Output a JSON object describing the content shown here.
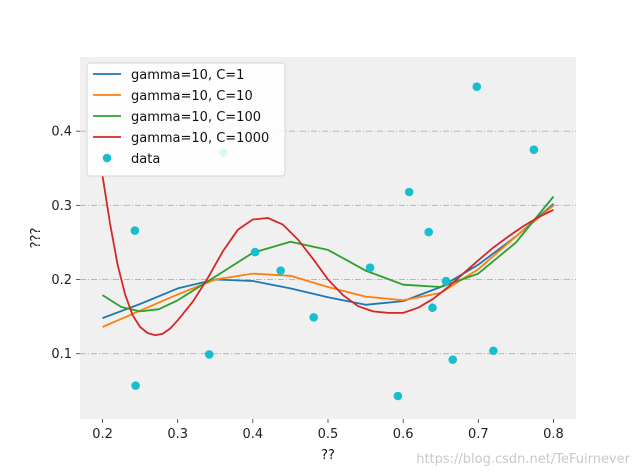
{
  "chart_data": {
    "type": "line",
    "title": "",
    "xlabel": "??",
    "ylabel": "???",
    "xlim": [
      0.17,
      0.83
    ],
    "ylim": [
      0.012,
      0.5
    ],
    "xticks": [
      0.2,
      0.3,
      0.4,
      0.5,
      0.6,
      0.7,
      0.8
    ],
    "yticks": [
      0.1,
      0.2,
      0.3,
      0.4
    ],
    "xtick_labels": [
      "0.2",
      "0.3",
      "0.4",
      "0.5",
      "0.6",
      "0.7",
      "0.8"
    ],
    "ytick_labels": [
      "0.1",
      "0.2",
      "0.3",
      "0.4"
    ],
    "grid": "horizontal dash-dot",
    "legend_position": "top-left",
    "series": [
      {
        "name": "gamma=10, C=1",
        "color": "#1f77b4",
        "x": [
          0.2,
          0.25,
          0.3,
          0.35,
          0.4,
          0.45,
          0.5,
          0.55,
          0.6,
          0.65,
          0.7,
          0.75,
          0.8
        ],
        "y": [
          0.148,
          0.167,
          0.188,
          0.2,
          0.198,
          0.188,
          0.176,
          0.166,
          0.171,
          0.19,
          0.22,
          0.258,
          0.302
        ]
      },
      {
        "name": "gamma=10, C=10",
        "color": "#ff7f0e",
        "x": [
          0.2,
          0.25,
          0.3,
          0.35,
          0.4,
          0.45,
          0.5,
          0.55,
          0.6,
          0.65,
          0.7,
          0.75,
          0.8
        ],
        "y": [
          0.136,
          0.158,
          0.18,
          0.2,
          0.208,
          0.205,
          0.19,
          0.177,
          0.172,
          0.182,
          0.214,
          0.258,
          0.3
        ]
      },
      {
        "name": "gamma=10, C=100",
        "color": "#2ca02c",
        "x": [
          0.2,
          0.225,
          0.25,
          0.275,
          0.3,
          0.35,
          0.4,
          0.45,
          0.5,
          0.55,
          0.6,
          0.65,
          0.7,
          0.75,
          0.8
        ],
        "y": [
          0.179,
          0.163,
          0.157,
          0.16,
          0.172,
          0.204,
          0.236,
          0.251,
          0.24,
          0.212,
          0.193,
          0.19,
          0.208,
          0.25,
          0.312
        ]
      },
      {
        "name": "gamma=10, C=1000",
        "color": "#d62728",
        "x": [
          0.2,
          0.21,
          0.22,
          0.23,
          0.24,
          0.25,
          0.26,
          0.27,
          0.28,
          0.29,
          0.3,
          0.32,
          0.34,
          0.36,
          0.38,
          0.4,
          0.42,
          0.44,
          0.46,
          0.48,
          0.5,
          0.52,
          0.54,
          0.56,
          0.58,
          0.6,
          0.62,
          0.64,
          0.66,
          0.68,
          0.7,
          0.72,
          0.74,
          0.76,
          0.78,
          0.8
        ],
        "y": [
          0.34,
          0.275,
          0.22,
          0.18,
          0.152,
          0.136,
          0.128,
          0.125,
          0.127,
          0.134,
          0.145,
          0.17,
          0.202,
          0.238,
          0.267,
          0.281,
          0.283,
          0.274,
          0.254,
          0.228,
          0.2,
          0.179,
          0.164,
          0.157,
          0.155,
          0.155,
          0.162,
          0.174,
          0.19,
          0.208,
          0.226,
          0.243,
          0.258,
          0.272,
          0.284,
          0.294
        ]
      }
    ],
    "scatter": {
      "name": "data",
      "color": "#17becf",
      "x": [
        0.243,
        0.244,
        0.342,
        0.361,
        0.403,
        0.437,
        0.481,
        0.556,
        0.593,
        0.608,
        0.634,
        0.639,
        0.657,
        0.666,
        0.698,
        0.72,
        0.774
      ],
      "y": [
        0.266,
        0.057,
        0.099,
        0.371,
        0.237,
        0.212,
        0.149,
        0.216,
        0.043,
        0.318,
        0.264,
        0.162,
        0.198,
        0.092,
        0.46,
        0.104,
        0.375
      ]
    }
  },
  "watermark": "https://blog.csdn.net/TeFuirnever"
}
